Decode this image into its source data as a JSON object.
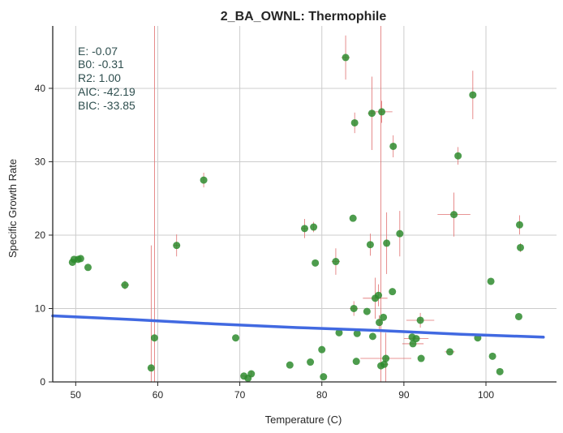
{
  "chart_data": {
    "type": "scatter",
    "title": "2_BA_OWNL: Thermophile",
    "xlabel": "Temperature (C)",
    "ylabel": "Specific Growth Rate",
    "xlim": [
      47.2,
      108.6
    ],
    "ylim": [
      0,
      48.5
    ],
    "xticks": [
      50,
      60,
      70,
      80,
      90,
      100
    ],
    "yticks": [
      0,
      10,
      20,
      30,
      40
    ],
    "grid": "vertical and horizontal at ticks",
    "stats": {
      "e": "E:  -0.07",
      "b0": "B0:  -0.31",
      "r2": "R2:  1.00",
      "aic": "AIC: -42.19",
      "bic": "BIC: -33.85"
    },
    "colors": {
      "points": "#2e8b2e",
      "fit": "#4169e1",
      "error": "#e07070"
    },
    "fit_line": [
      [
        47.2,
        9.0
      ],
      [
        57,
        8.5
      ],
      [
        67,
        7.9
      ],
      [
        77,
        7.4
      ],
      [
        87,
        7.0
      ],
      [
        97,
        6.5
      ],
      [
        107,
        6.1
      ]
    ],
    "points": [
      {
        "x": 49.6,
        "y": 16.3
      },
      {
        "x": 49.8,
        "y": 16.7
      },
      {
        "x": 50.3,
        "y": 16.7
      },
      {
        "x": 50.6,
        "y": 16.8
      },
      {
        "x": 51.5,
        "y": 15.6
      },
      {
        "x": 56.0,
        "y": 13.2,
        "xerr": 0.5,
        "yerr": 0.6
      },
      {
        "x": 59.2,
        "y": 1.9,
        "yerr": 16.7,
        "xerr": 0.3
      },
      {
        "x": 59.6,
        "y": 6.0,
        "yerr": 55
      },
      {
        "x": 62.3,
        "y": 18.6,
        "yerr": 1.5,
        "xerr": 0.4
      },
      {
        "x": 65.6,
        "y": 27.5,
        "yerr": 1.0
      },
      {
        "x": 69.5,
        "y": 6.0
      },
      {
        "x": 70.5,
        "y": 0.8,
        "xerr": 0.4
      },
      {
        "x": 71.0,
        "y": 0.5
      },
      {
        "x": 71.4,
        "y": 1.1,
        "yerr": 0.4
      },
      {
        "x": 76.1,
        "y": 2.3
      },
      {
        "x": 77.9,
        "y": 20.9,
        "yerr": 1.3,
        "xerr": 0.4
      },
      {
        "x": 78.6,
        "y": 2.7
      },
      {
        "x": 79.0,
        "y": 21.1,
        "yerr": 0.7
      },
      {
        "x": 79.2,
        "y": 16.2
      },
      {
        "x": 80.0,
        "y": 4.4
      },
      {
        "x": 80.2,
        "y": 0.7
      },
      {
        "x": 81.7,
        "y": 16.4,
        "yerr": 1.8,
        "xerr": 0.5
      },
      {
        "x": 82.1,
        "y": 6.7
      },
      {
        "x": 82.9,
        "y": 44.2,
        "yerr": 3.0,
        "xerr": 0.5
      },
      {
        "x": 83.8,
        "y": 22.3
      },
      {
        "x": 83.9,
        "y": 10.0,
        "xerr": 0.5,
        "yerr": 1.0
      },
      {
        "x": 84.0,
        "y": 35.3,
        "yerr": 1.4
      },
      {
        "x": 84.2,
        "y": 2.8
      },
      {
        "x": 84.3,
        "y": 6.6
      },
      {
        "x": 85.5,
        "y": 9.6
      },
      {
        "x": 85.9,
        "y": 18.7,
        "yerr": 1.5
      },
      {
        "x": 86.1,
        "y": 36.6,
        "xerr": 0.5,
        "yerr": 5.0
      },
      {
        "x": 86.2,
        "y": 6.2
      },
      {
        "x": 86.5,
        "y": 11.4,
        "xerr": 1.5,
        "yerr": 2.8
      },
      {
        "x": 86.9,
        "y": 11.8,
        "yerr": 1.5
      },
      {
        "x": 87.0,
        "y": 8.1,
        "yerr": 1.0
      },
      {
        "x": 87.2,
        "y": 2.2,
        "yerr": 55
      },
      {
        "x": 87.3,
        "y": 36.8,
        "xerr": 1.3,
        "yerr": 1.5
      },
      {
        "x": 87.5,
        "y": 8.8
      },
      {
        "x": 87.6,
        "y": 2.4,
        "xerr": 0.5
      },
      {
        "x": 87.8,
        "y": 3.2,
        "xerr": 3.1,
        "yerr": 3.5
      },
      {
        "x": 87.9,
        "y": 18.9,
        "yerr": 4.2
      },
      {
        "x": 88.6,
        "y": 12.3
      },
      {
        "x": 88.7,
        "y": 32.1,
        "yerr": 1.5
      },
      {
        "x": 89.5,
        "y": 20.2,
        "yerr": 3.1
      },
      {
        "x": 91.0,
        "y": 6.1
      },
      {
        "x": 91.1,
        "y": 5.2,
        "xerr": 1.3
      },
      {
        "x": 91.5,
        "y": 5.9,
        "xerr": 1.5
      },
      {
        "x": 92.0,
        "y": 8.4,
        "xerr": 1.7,
        "yerr": 1.0
      },
      {
        "x": 92.1,
        "y": 3.2
      },
      {
        "x": 95.6,
        "y": 4.1,
        "xerr": 0.6
      },
      {
        "x": 96.1,
        "y": 22.8,
        "xerr": 2.0,
        "yerr": 3.0
      },
      {
        "x": 96.6,
        "y": 30.8,
        "yerr": 1.2
      },
      {
        "x": 98.4,
        "y": 39.1,
        "yerr": 3.3
      },
      {
        "x": 99.0,
        "y": 6.0
      },
      {
        "x": 100.6,
        "y": 13.7
      },
      {
        "x": 100.8,
        "y": 3.5
      },
      {
        "x": 101.7,
        "y": 1.4
      },
      {
        "x": 104.0,
        "y": 8.9
      },
      {
        "x": 104.1,
        "y": 21.4,
        "yerr": 1.3
      },
      {
        "x": 104.2,
        "y": 18.3,
        "yerr": 0.6
      }
    ]
  }
}
